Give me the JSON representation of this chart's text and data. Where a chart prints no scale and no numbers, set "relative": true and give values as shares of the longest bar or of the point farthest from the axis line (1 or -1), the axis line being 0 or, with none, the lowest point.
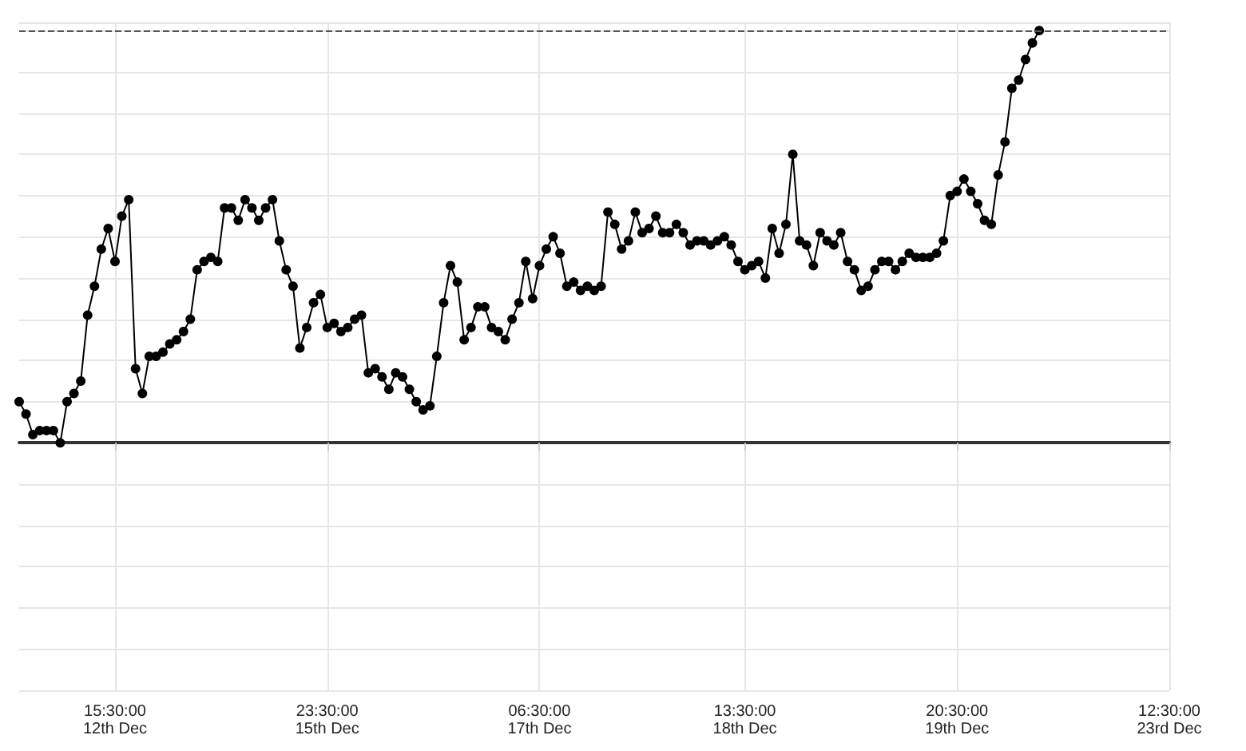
{
  "chart_data": {
    "type": "line",
    "relative": true,
    "marker": "circle",
    "line_style": "solid",
    "grid": true,
    "tick_labels": "x",
    "categories": [
      null,
      null,
      null,
      null,
      null,
      null,
      null,
      null,
      null,
      null,
      null,
      null,
      null,
      null,
      "15:30:00\n12th Dec",
      null,
      null,
      null,
      null,
      null,
      null,
      null,
      null,
      null,
      null,
      null,
      null,
      null,
      null,
      null,
      null,
      null,
      null,
      null,
      null,
      null,
      null,
      null,
      null,
      null,
      null,
      null,
      null,
      null,
      null,
      "23:30:00\n15th Dec",
      null,
      null,
      null,
      null,
      null,
      null,
      null,
      null,
      null,
      null,
      null,
      null,
      null,
      null,
      null,
      null,
      null,
      null,
      null,
      null,
      null,
      null,
      null,
      null,
      null,
      null,
      null,
      null,
      null,
      null,
      "06:30:00\n17th Dec",
      null,
      null,
      null,
      null,
      null,
      null,
      null,
      null,
      null,
      null,
      null,
      null,
      null,
      null,
      null,
      null,
      null,
      null,
      null,
      null,
      null,
      null,
      null,
      null,
      null,
      null,
      null,
      null,
      null,
      "13:30:00\n18th Dec",
      null,
      null,
      null,
      null,
      null,
      null,
      null,
      null,
      null,
      null,
      null,
      null,
      null,
      null,
      null,
      null,
      null,
      null,
      null,
      null,
      null,
      null,
      null,
      null,
      null,
      null,
      null,
      null,
      null,
      null,
      "20:30:00\n19th Dec",
      null,
      null,
      null,
      null,
      null,
      null,
      null,
      null,
      null,
      null,
      null,
      null,
      null,
      null,
      null,
      null,
      null,
      null,
      null,
      null,
      null,
      null,
      null,
      null,
      null,
      null,
      null,
      null,
      null,
      null,
      "12:30:00\n23rd Dec"
    ],
    "series": [
      {
        "color": "#000000",
        "values": [
          0.1,
          0.07,
          0.02,
          0.03,
          0.03,
          0.03,
          0,
          0.1,
          0.12,
          0.15,
          0.31,
          0.38,
          0.47,
          0.52,
          0.44,
          0.55,
          0.59,
          0.18,
          0.12,
          0.21,
          0.21,
          0.22,
          0.24,
          0.25,
          0.27,
          0.3,
          0.42,
          0.44,
          0.45,
          0.44,
          0.57,
          0.57,
          0.54,
          0.59,
          0.57,
          0.54,
          0.57,
          0.59,
          0.49,
          0.42,
          0.38,
          0.23,
          0.28,
          0.34,
          0.36,
          0.28,
          0.29,
          0.27,
          0.28,
          0.3,
          0.31,
          0.17,
          0.18,
          0.16,
          0.13,
          0.17,
          0.16,
          0.13,
          0.1,
          0.08,
          0.09,
          0.21,
          0.34,
          0.43,
          0.39,
          0.25,
          0.28,
          0.33,
          0.33,
          0.28,
          0.27,
          0.25,
          0.3,
          0.34,
          0.44,
          0.35,
          0.43,
          0.47,
          0.5,
          0.46,
          0.38,
          0.39,
          0.37,
          0.38,
          0.37,
          0.38,
          0.56,
          0.53,
          0.47,
          0.49,
          0.56,
          0.51,
          0.52,
          0.55,
          0.51,
          0.51,
          0.53,
          0.51,
          0.48,
          0.49,
          0.49,
          0.48,
          0.49,
          0.5,
          0.48,
          0.44,
          0.42,
          0.43,
          0.44,
          0.4,
          0.52,
          0.46,
          0.53,
          0.7,
          0.49,
          0.48,
          0.43,
          0.51,
          0.49,
          0.48,
          0.51,
          0.44,
          0.42,
          0.37,
          0.38,
          0.42,
          0.44,
          0.44,
          0.42,
          0.44,
          0.46,
          0.45,
          0.45,
          0.45,
          0.46,
          0.49,
          0.6,
          0.61,
          0.64,
          0.61,
          0.58,
          0.54,
          0.53,
          0.65,
          0.73,
          0.86,
          0.88,
          0.93,
          0.97,
          1,
          null,
          null,
          null,
          null,
          null,
          null,
          null,
          null,
          null,
          null,
          null,
          null,
          null,
          null,
          null,
          null,
          null,
          null,
          null
        ]
      }
    ],
    "ref_lines": [
      {
        "axis": "y",
        "value": 1,
        "color": "#555555",
        "line_style": "dashed"
      }
    ]
  }
}
